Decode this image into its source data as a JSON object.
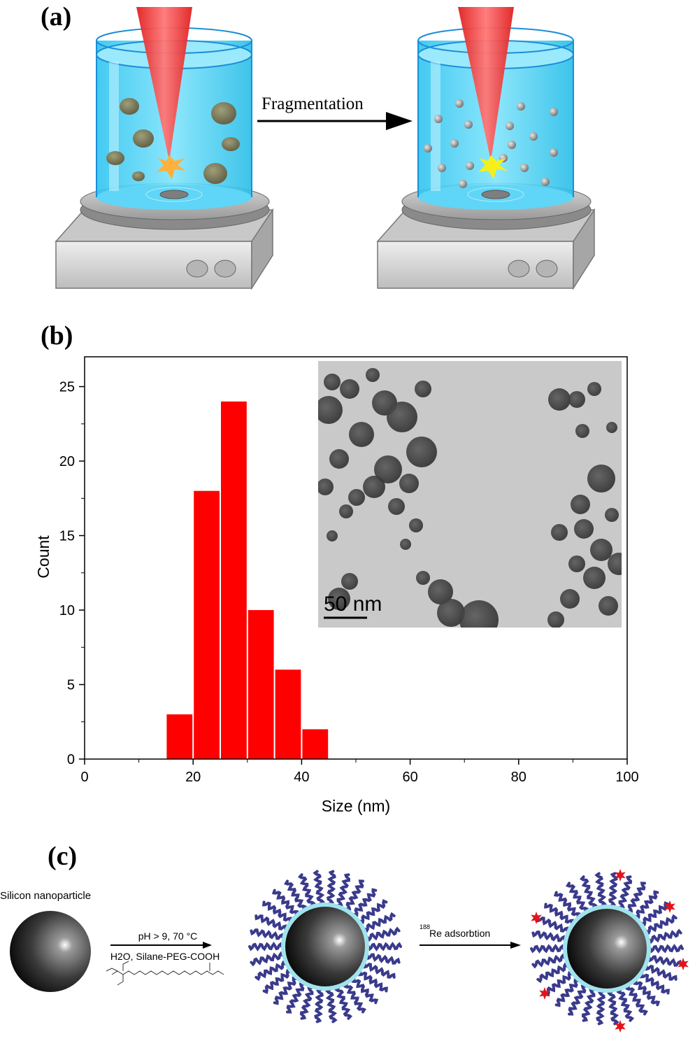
{
  "panels": {
    "a": "(a)",
    "b": "(b)",
    "c": "(c)"
  },
  "panel_a": {
    "arrow_label": "Fragmentation"
  },
  "tem_inset": {
    "scale_bar_label": "50 nm"
  },
  "chart_data": {
    "type": "bar",
    "xlabel": "Size (nm)",
    "ylabel": "Count",
    "xlim": [
      0,
      100
    ],
    "ylim": [
      0,
      27
    ],
    "xticks": [
      0,
      20,
      40,
      60,
      80,
      100
    ],
    "yticks": [
      0,
      5,
      10,
      15,
      20,
      25
    ],
    "bin_width": 5,
    "bins": [
      15,
      20,
      25,
      30,
      35,
      40
    ],
    "values": [
      3,
      18,
      24,
      10,
      6,
      2
    ],
    "bar_color": "#ff0000"
  },
  "panel_c": {
    "np_label": "Silicon nanoparticle",
    "step1_top": "pH > 9, 70 °C",
    "step1_bottom": "H2O, Silane-PEG-COOH",
    "step2_sup": "188",
    "step2_label": "Re adsorbtion"
  },
  "colors": {
    "water": "#4fd3f5",
    "laser": "#ff3b3b",
    "bar": "#ff0000",
    "peg": "#3a3a8c",
    "shell": "#9fe3ec",
    "rhenium": "#e0141a"
  }
}
